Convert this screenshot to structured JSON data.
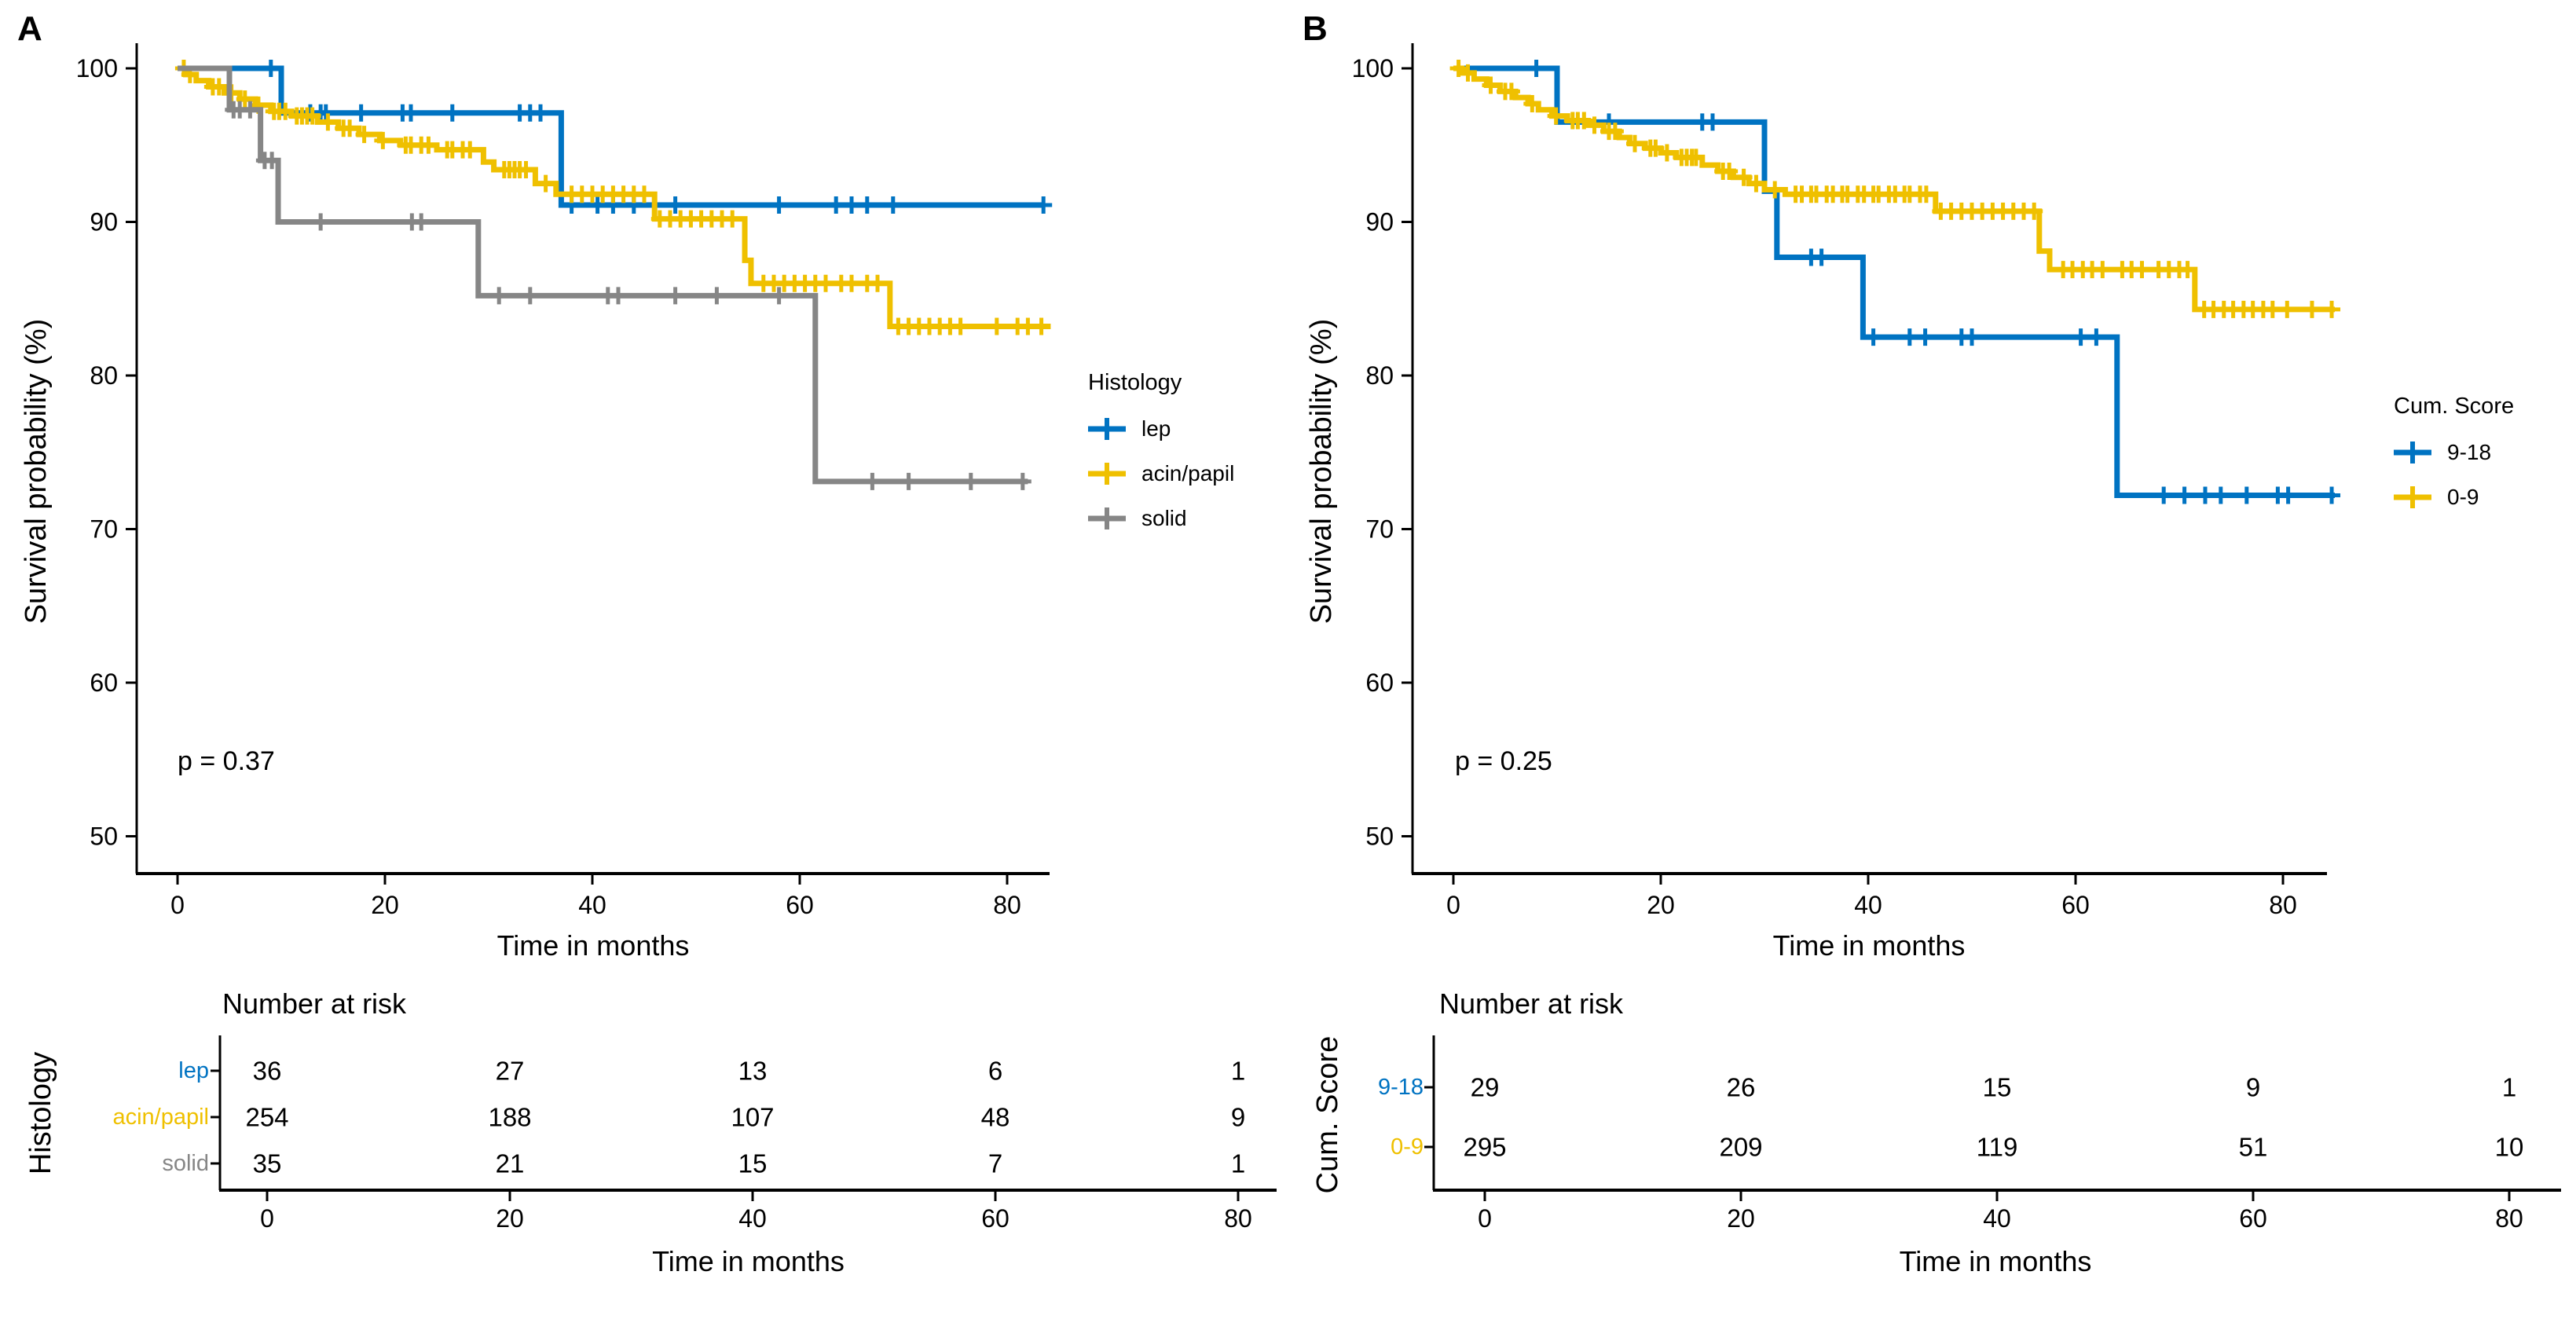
{
  "chart_data": [
    {
      "type": "line",
      "subtype": "kaplan-meier-step",
      "panel_label": "A",
      "xlabel": "Time in months",
      "ylabel": "Survival probability (%)",
      "p_value_text": "p = 0.37",
      "x_ticks": [
        0,
        20,
        40,
        60,
        80
      ],
      "y_ticks": [
        100,
        90,
        80,
        70,
        60,
        50
      ],
      "xlim": [
        0,
        85
      ],
      "ylim": [
        48,
        102
      ],
      "grid": "off",
      "legend": {
        "title": "Histology",
        "position": "right",
        "items": [
          {
            "label": "lep",
            "color": "#0073C2"
          },
          {
            "label": "acin/papil",
            "color": "#EFC000"
          },
          {
            "label": "solid",
            "color": "#868686"
          }
        ]
      },
      "series": [
        {
          "name": "lep",
          "color": "#0073C2",
          "steps": [
            [
              0,
              100
            ],
            [
              10,
              97.1
            ],
            [
              37,
              91.1
            ]
          ],
          "end_time": 83.6,
          "censor_times": [
            9,
            12.8,
            13.8,
            14.3,
            17.7,
            21.7,
            22.5,
            26.5,
            33,
            34,
            35,
            38,
            40.5,
            42,
            44,
            48,
            58,
            63.5,
            65,
            66.5,
            69,
            83.5
          ]
        },
        {
          "name": "acin/papil",
          "color": "#EFC000",
          "steps": [
            [
              0,
              100
            ],
            [
              0.8,
              99.6
            ],
            [
              1.8,
              99.2
            ],
            [
              3,
              98.8
            ],
            [
              4.5,
              98.4
            ],
            [
              6,
              98
            ],
            [
              7.5,
              97.6
            ],
            [
              9,
              97.2
            ],
            [
              11,
              96.9
            ],
            [
              13.5,
              96.5
            ],
            [
              15.5,
              96.1
            ],
            [
              17.5,
              95.7
            ],
            [
              19.5,
              95.3
            ],
            [
              21.5,
              95
            ],
            [
              25,
              94.7
            ],
            [
              29.5,
              93.9
            ],
            [
              30.5,
              93.4
            ],
            [
              34.5,
              92.5
            ],
            [
              36.5,
              91.8
            ],
            [
              46,
              90.2
            ],
            [
              54.7,
              87.5
            ],
            [
              55.3,
              86
            ],
            [
              68.7,
              83.2
            ]
          ],
          "end_time": 84.2,
          "censor_times": [
            0.6,
            1.2,
            3.4,
            4,
            5.2,
            6.5,
            7.8,
            9.3,
            9.8,
            10.4,
            11.5,
            12,
            12.5,
            13,
            14.5,
            16,
            16.6,
            18,
            19.8,
            22,
            22.5,
            23.5,
            24.2,
            26,
            26.5,
            27.5,
            28.2,
            31.5,
            32,
            32.5,
            33,
            33.6,
            35.5,
            38,
            39,
            40,
            41,
            42,
            43,
            44,
            45,
            46.5,
            47.5,
            48.5,
            49.5,
            50.5,
            51.5,
            52.5,
            53.5,
            56.5,
            57.5,
            58.5,
            59.5,
            60.5,
            61.5,
            62.5,
            64,
            65,
            66.5,
            67.5,
            69.5,
            70.5,
            71.5,
            72.5,
            73.5,
            74.5,
            75.5,
            79,
            81,
            82,
            83.3
          ]
        },
        {
          "name": "solid",
          "color": "#868686",
          "steps": [
            [
              0,
              100
            ],
            [
              5,
              97.3
            ],
            [
              8,
              94
            ],
            [
              9.7,
              90
            ],
            [
              29,
              85.2
            ],
            [
              61.5,
              73.1
            ]
          ],
          "end_time": 82,
          "censor_times": [
            5.4,
            6,
            7,
            8.4,
            9.1,
            13.8,
            22.6,
            23.5,
            31,
            34,
            41.5,
            42.5,
            48,
            52,
            58,
            67,
            70.5,
            76.5,
            81.5
          ]
        }
      ],
      "risk_table": {
        "title": "Number at risk",
        "axis_label": "Histology",
        "xlabel": "Time in months",
        "times": [
          0,
          20,
          40,
          60,
          80
        ],
        "rows": [
          {
            "label": "lep",
            "color": "#0073C2",
            "counts": [
              36,
              27,
              13,
              6,
              1
            ]
          },
          {
            "label": "acin/papil",
            "color": "#EFC000",
            "counts": [
              254,
              188,
              107,
              48,
              9
            ]
          },
          {
            "label": "solid",
            "color": "#868686",
            "counts": [
              35,
              21,
              15,
              7,
              1
            ]
          }
        ]
      }
    },
    {
      "type": "line",
      "subtype": "kaplan-meier-step",
      "panel_label": "B",
      "xlabel": "Time in months",
      "ylabel": "Survival probability (%)",
      "p_value_text": "p = 0.25",
      "x_ticks": [
        0,
        20,
        40,
        60,
        80
      ],
      "y_ticks": [
        100,
        90,
        80,
        70,
        60,
        50
      ],
      "xlim": [
        0,
        85
      ],
      "ylim": [
        48,
        102
      ],
      "grid": "off",
      "legend": {
        "title": "Cum. Score",
        "position": "right",
        "items": [
          {
            "label": "9-18",
            "color": "#0073C2"
          },
          {
            "label": "0-9",
            "color": "#EFC000"
          }
        ]
      },
      "series": [
        {
          "name": "9-18",
          "color": "#0073C2",
          "steps": [
            [
              0,
              100
            ],
            [
              10,
              96.5
            ],
            [
              30,
              92
            ],
            [
              31.2,
              87.7
            ],
            [
              39.5,
              82.5
            ],
            [
              64,
              72.2
            ]
          ],
          "end_time": 85,
          "censor_times": [
            8,
            15,
            24,
            25,
            34.5,
            35.5,
            40.5,
            44,
            45.5,
            49,
            50,
            60.5,
            62,
            68.5,
            70.5,
            72.5,
            74,
            76.5,
            79.5,
            80.5,
            84.7
          ]
        },
        {
          "name": "0-9",
          "color": "#EFC000",
          "steps": [
            [
              0,
              100
            ],
            [
              0.8,
              99.7
            ],
            [
              2,
              99.3
            ],
            [
              3.2,
              98.9
            ],
            [
              4.5,
              98.5
            ],
            [
              6,
              98.1
            ],
            [
              7.2,
              97.7
            ],
            [
              8.2,
              97.3
            ],
            [
              9.5,
              96.9
            ],
            [
              11,
              96.6
            ],
            [
              13,
              96.3
            ],
            [
              14.5,
              95.9
            ],
            [
              16,
              95.5
            ],
            [
              17,
              95.1
            ],
            [
              18.5,
              94.8
            ],
            [
              20,
              94.5
            ],
            [
              21.5,
              94.2
            ],
            [
              24,
              93.7
            ],
            [
              25.5,
              93.3
            ],
            [
              27,
              92.9
            ],
            [
              28.5,
              92.5
            ],
            [
              30,
              92.1
            ],
            [
              32,
              91.8
            ],
            [
              46.5,
              90.7
            ],
            [
              56.5,
              88.1
            ],
            [
              57.5,
              86.9
            ],
            [
              71.5,
              84.3
            ]
          ],
          "end_time": 85,
          "censor_times": [
            0.5,
            1.4,
            3.6,
            5,
            5.6,
            7.6,
            9.9,
            11.5,
            12,
            12.6,
            13.6,
            15,
            15.6,
            17.5,
            19,
            19.5,
            20.6,
            22,
            22.5,
            23,
            23.4,
            26,
            26.6,
            28,
            29.2,
            31,
            33,
            33.6,
            34.5,
            35,
            36,
            36.6,
            37.5,
            38,
            39,
            39.6,
            40.5,
            41,
            42,
            42.6,
            43.5,
            44,
            45,
            45.6,
            47,
            48,
            49,
            50,
            51,
            52,
            53,
            54,
            55,
            56,
            58.8,
            59.7,
            60.7,
            61.6,
            62.6,
            64.5,
            65.4,
            66.4,
            68,
            69,
            70,
            70.8,
            72.4,
            73.3,
            74.3,
            75.2,
            76.2,
            77.1,
            78.1,
            79,
            80.4,
            82.8,
            84.7
          ]
        }
      ],
      "risk_table": {
        "title": "Number at risk",
        "axis_label": "Cum. Score",
        "xlabel": "Time in months",
        "times": [
          0,
          20,
          40,
          60,
          80
        ],
        "rows": [
          {
            "label": "9-18",
            "color": "#0073C2",
            "counts": [
              29,
              26,
              15,
              9,
              1
            ]
          },
          {
            "label": "0-9",
            "color": "#EFC000",
            "counts": [
              295,
              209,
              119,
              51,
              10
            ]
          }
        ]
      }
    }
  ]
}
